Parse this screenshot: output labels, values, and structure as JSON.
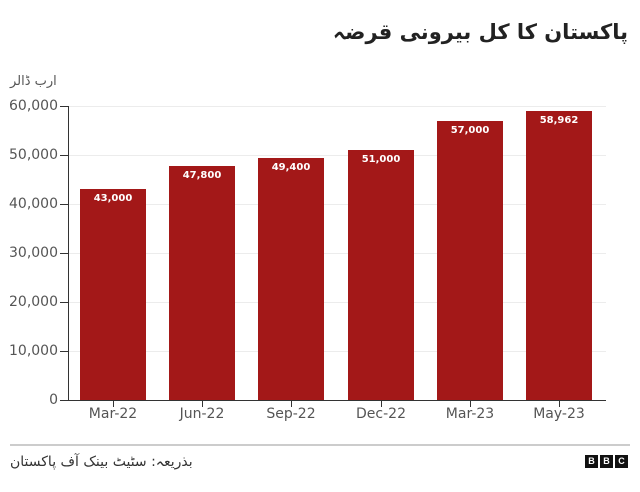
{
  "header": {
    "title": "پاکستان کا کل بیرونی قرضہ"
  },
  "footer": {
    "source": "بذریعہ: سٹیٹ بینک آف پاکستان",
    "logo": [
      "B",
      "B",
      "C"
    ]
  },
  "colors": {
    "bar": "#a31818",
    "bar_label": "#ffffff",
    "axis": "#333333",
    "gridline": "#ececec",
    "text": "#555555"
  },
  "chart_data": {
    "type": "bar",
    "title": "پاکستان کا کل بیرونی قرضہ",
    "ylabel": "ارب ڈالر",
    "xlabel": "",
    "categories": [
      "Mar-22",
      "Jun-22",
      "Sep-22",
      "Dec-22",
      "Mar-23",
      "May-23"
    ],
    "values": [
      43000,
      47800,
      49400,
      51000,
      57000,
      58962
    ],
    "value_labels": [
      "43,000",
      "47,800",
      "49,400",
      "51,000",
      "57,000",
      "58,962"
    ],
    "ylim": [
      0,
      60000
    ],
    "yticks": [
      0,
      10000,
      20000,
      30000,
      40000,
      50000,
      60000
    ],
    "ytick_labels": [
      "0",
      "10,000",
      "20,000",
      "30,000",
      "40,000",
      "50,000",
      "60,000"
    ],
    "grid": true,
    "legend": null,
    "source": "بذریعہ: سٹیٹ بینک آف پاکستان"
  }
}
